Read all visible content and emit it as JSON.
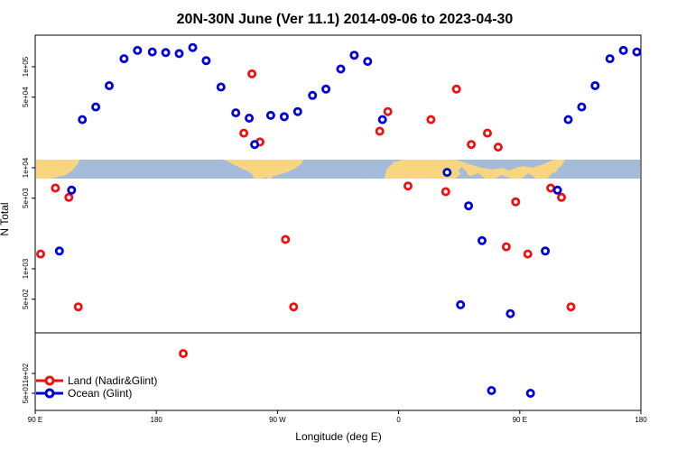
{
  "chart_data": {
    "type": "scatter",
    "title": "20N-30N June (Ver 11.1)   2014-09-06 to 2023-04-30",
    "xlabel": "Longitude (deg E)",
    "ylabel": "N Total",
    "x_scale": "longitude, 90E to 180 wrapping",
    "y_scale": "log",
    "x_ticks": [
      {
        "value": 90,
        "label": "90 E"
      },
      {
        "value": 180,
        "label": "180"
      },
      {
        "value": 270,
        "label": "90 W"
      },
      {
        "value": 360,
        "label": "0"
      },
      {
        "value": 450,
        "label": "90 E"
      },
      {
        "value": 540,
        "label": "180"
      }
    ],
    "y_ticks_upper": [
      {
        "value": 1000,
        "label": "1e+03"
      },
      {
        "value": 5000,
        "label": "5e+03"
      },
      {
        "value": 10000,
        "label": "1e+04"
      },
      {
        "value": 50000,
        "label": "5e+04"
      },
      {
        "value": 100000,
        "label": "1e+05"
      },
      {
        "value": 500,
        "label": "5e+02"
      }
    ],
    "y_ticks_lower": [
      {
        "value": 100,
        "label": "1e+02"
      },
      {
        "value": 50,
        "label": "5e+01"
      }
    ],
    "legend_position": "bottom-left",
    "series": [
      {
        "name": "Land (Nadir&Glint)",
        "color": "#ee1111",
        "points": [
          {
            "x": 94,
            "y": 1400
          },
          {
            "x": 105,
            "y": 6300
          },
          {
            "x": 115,
            "y": 5100
          },
          {
            "x": 122,
            "y": 420
          },
          {
            "x": 200,
            "y": 200
          },
          {
            "x": 245,
            "y": 22000
          },
          {
            "x": 251,
            "y": 85000
          },
          {
            "x": 257,
            "y": 18000
          },
          {
            "x": 276,
            "y": 1950
          },
          {
            "x": 282,
            "y": 420
          },
          {
            "x": 346,
            "y": 23000
          },
          {
            "x": 352,
            "y": 36000
          },
          {
            "x": 367,
            "y": 6600
          },
          {
            "x": 384,
            "y": 30000
          },
          {
            "x": 395,
            "y": 5800
          },
          {
            "x": 403,
            "y": 60000
          },
          {
            "x": 414,
            "y": 17000
          },
          {
            "x": 426,
            "y": 22000
          },
          {
            "x": 434,
            "y": 16000
          },
          {
            "x": 440,
            "y": 1650
          },
          {
            "x": 447,
            "y": 4600
          },
          {
            "x": 456,
            "y": 1400
          },
          {
            "x": 473,
            "y": 6300
          },
          {
            "x": 481,
            "y": 5100
          },
          {
            "x": 488,
            "y": 420
          }
        ]
      },
      {
        "name": "Ocean (Glint)",
        "color": "#0000dd",
        "points": [
          {
            "x": 108,
            "y": 1500
          },
          {
            "x": 117,
            "y": 6000
          },
          {
            "x": 125,
            "y": 30000
          },
          {
            "x": 135,
            "y": 40000
          },
          {
            "x": 145,
            "y": 65000
          },
          {
            "x": 156,
            "y": 120000
          },
          {
            "x": 166,
            "y": 145000
          },
          {
            "x": 177,
            "y": 140000
          },
          {
            "x": 187,
            "y": 138000
          },
          {
            "x": 197,
            "y": 135000
          },
          {
            "x": 207,
            "y": 155000
          },
          {
            "x": 217,
            "y": 115000
          },
          {
            "x": 228,
            "y": 63000
          },
          {
            "x": 239,
            "y": 35000
          },
          {
            "x": 249,
            "y": 31000
          },
          {
            "x": 253,
            "y": 17000
          },
          {
            "x": 265,
            "y": 33000
          },
          {
            "x": 275,
            "y": 32000
          },
          {
            "x": 285,
            "y": 36000
          },
          {
            "x": 296,
            "y": 52000
          },
          {
            "x": 306,
            "y": 60000
          },
          {
            "x": 317,
            "y": 95000
          },
          {
            "x": 327,
            "y": 130000
          },
          {
            "x": 337,
            "y": 113000
          },
          {
            "x": 348,
            "y": 30000
          },
          {
            "x": 396,
            "y": 9000
          },
          {
            "x": 406,
            "y": 440
          },
          {
            "x": 412,
            "y": 4200
          },
          {
            "x": 422,
            "y": 1900
          },
          {
            "x": 429,
            "y": 55
          },
          {
            "x": 443,
            "y": 360
          },
          {
            "x": 458,
            "y": 50
          },
          {
            "x": 469,
            "y": 1500
          },
          {
            "x": 478,
            "y": 6000
          },
          {
            "x": 486,
            "y": 30000
          },
          {
            "x": 496,
            "y": 40000
          },
          {
            "x": 506,
            "y": 65000
          },
          {
            "x": 517,
            "y": 120000
          },
          {
            "x": 527,
            "y": 145000
          },
          {
            "x": 537,
            "y": 140000
          }
        ]
      }
    ]
  }
}
